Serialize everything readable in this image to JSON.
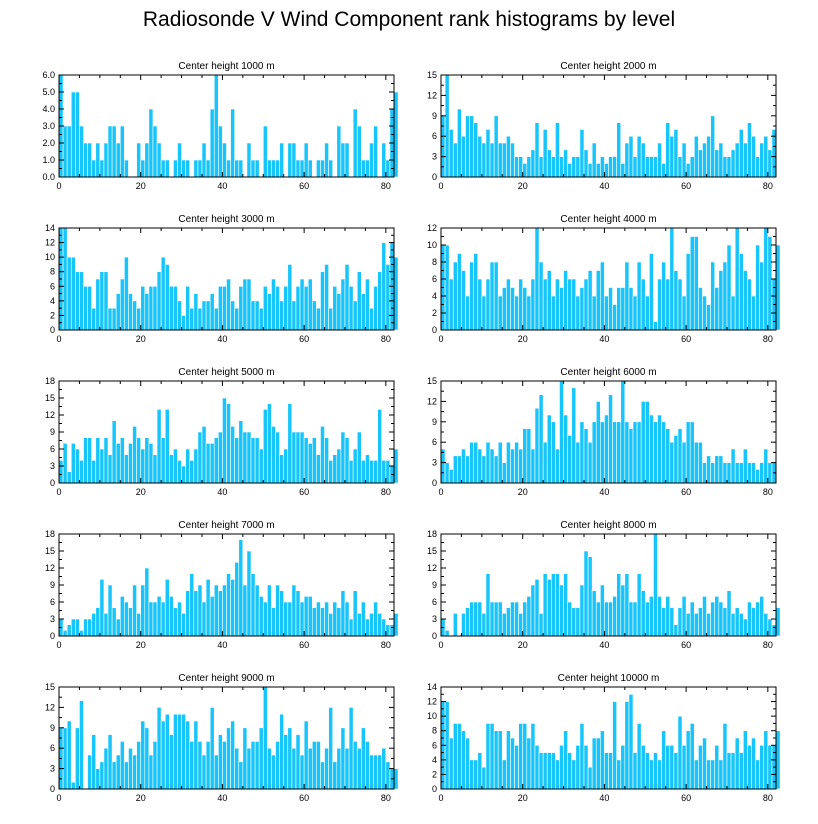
{
  "title": "Radiosonde V Wind Component rank histograms by level",
  "colors": {
    "bar": "#18c5fa",
    "frame": "#000000"
  },
  "chart_data": [
    {
      "type": "bar",
      "title": "Center height 1000 m",
      "ylim": [
        0,
        6
      ],
      "yticks": [
        "0.0",
        "1.0",
        "2.0",
        "3.0",
        "4.0",
        "5.0",
        "6.0"
      ],
      "ytick_values": [
        0,
        1,
        2,
        3,
        4,
        5,
        6
      ],
      "xlim": [
        0,
        82
      ],
      "xticks": [
        "0",
        "20",
        "40",
        "60",
        "80"
      ],
      "xtick_values": [
        0,
        20,
        40,
        60,
        80
      ],
      "values": [
        6,
        3,
        3,
        5,
        5,
        3,
        2,
        2,
        1,
        2,
        1,
        2,
        3,
        3,
        2,
        3,
        1,
        0,
        0,
        2,
        1,
        2,
        4,
        3,
        2,
        1,
        1,
        0,
        1,
        2,
        1,
        1,
        0,
        1,
        1,
        2,
        1,
        4,
        6,
        3,
        2,
        1,
        4,
        1,
        1,
        0,
        2,
        1,
        1,
        0,
        3,
        1,
        1,
        1,
        2,
        0,
        2,
        2,
        1,
        1,
        2,
        1,
        0,
        1,
        1,
        2,
        1,
        0,
        3,
        2,
        2,
        0,
        4,
        3,
        1,
        1,
        2,
        3,
        0,
        2,
        1,
        4,
        5
      ]
    },
    {
      "type": "bar",
      "title": "Center height 2000 m",
      "ylim": [
        0,
        15
      ],
      "yticks": [
        "0",
        "3",
        "6",
        "9",
        "12",
        "15"
      ],
      "ytick_values": [
        0,
        3,
        6,
        9,
        12,
        15
      ],
      "xlim": [
        0,
        82
      ],
      "xticks": [
        "0",
        "20",
        "40",
        "60",
        "80"
      ],
      "xtick_values": [
        0,
        20,
        40,
        60,
        80
      ],
      "values": [
        9,
        15,
        7,
        5,
        10,
        6,
        9,
        9,
        8,
        6,
        5,
        7,
        5,
        9,
        5,
        5,
        6,
        5,
        3,
        3,
        2,
        3,
        4,
        8,
        3,
        7,
        4,
        3,
        8,
        3,
        4,
        2,
        3,
        3,
        7,
        4,
        2,
        5,
        2,
        3,
        2,
        3,
        3,
        8,
        2,
        5,
        6,
        3,
        6,
        5,
        3,
        3,
        3,
        5,
        2,
        8,
        6,
        7,
        3,
        5,
        2,
        3,
        6,
        4,
        5,
        6,
        9,
        4,
        5,
        3,
        3,
        4,
        5,
        7,
        5,
        8,
        6,
        3,
        5,
        6,
        4,
        7
      ]
    },
    {
      "type": "bar",
      "title": "Center height 3000 m",
      "ylim": [
        0,
        14
      ],
      "yticks": [
        "0",
        "2",
        "4",
        "6",
        "8",
        "10",
        "12",
        "14"
      ],
      "ytick_values": [
        0,
        2,
        4,
        6,
        8,
        10,
        12,
        14
      ],
      "xlim": [
        0,
        82
      ],
      "xticks": [
        "0",
        "20",
        "40",
        "60",
        "80"
      ],
      "xtick_values": [
        0,
        20,
        40,
        60,
        80
      ],
      "values": [
        14,
        14,
        10,
        10,
        8,
        8,
        6,
        6,
        3,
        7,
        8,
        8,
        3,
        3,
        5,
        7,
        10,
        5,
        4,
        3,
        6,
        5,
        6,
        6,
        8,
        10,
        9,
        6,
        6,
        4,
        2,
        6,
        3,
        5,
        3,
        4,
        4,
        5,
        3,
        6,
        6,
        7,
        4,
        3,
        6,
        7,
        7,
        4,
        4,
        3,
        6,
        5,
        7,
        6,
        4,
        6,
        9,
        4,
        6,
        7,
        6,
        7,
        4,
        3,
        8,
        9,
        3,
        6,
        5,
        7,
        9,
        6,
        4,
        8,
        5,
        7,
        3,
        6,
        8,
        12,
        9,
        12,
        10
      ]
    },
    {
      "type": "bar",
      "title": "Center height 4000 m",
      "ylim": [
        0,
        12
      ],
      "yticks": [
        "0",
        "2",
        "4",
        "6",
        "8",
        "10",
        "12"
      ],
      "ytick_values": [
        0,
        2,
        4,
        6,
        8,
        10,
        12
      ],
      "xlim": [
        0,
        82
      ],
      "xticks": [
        "0",
        "20",
        "40",
        "60",
        "80"
      ],
      "xtick_values": [
        0,
        20,
        40,
        60,
        80
      ],
      "values": [
        10,
        10,
        6,
        8,
        9,
        7,
        4,
        8,
        9,
        6,
        4,
        6,
        8,
        8,
        4,
        5,
        6,
        5,
        4,
        6,
        5,
        4,
        6,
        12,
        8,
        6,
        7,
        4,
        6,
        5,
        7,
        6,
        6,
        4,
        5,
        6,
        7,
        4,
        7,
        8,
        4,
        5,
        3,
        5,
        5,
        8,
        5,
        4,
        8,
        6,
        4,
        9,
        1,
        6,
        8,
        6,
        12,
        7,
        6,
        4,
        9,
        11,
        11,
        5,
        4,
        3,
        8,
        5,
        7,
        8,
        10,
        4,
        12,
        9,
        7,
        6,
        4,
        10,
        8,
        12,
        11,
        6,
        10
      ]
    },
    {
      "type": "bar",
      "title": "Center height 5000 m",
      "ylim": [
        0,
        18
      ],
      "yticks": [
        "0",
        "3",
        "6",
        "9",
        "12",
        "15",
        "18"
      ],
      "ytick_values": [
        0,
        3,
        6,
        9,
        12,
        15,
        18
      ],
      "xlim": [
        0,
        82
      ],
      "xticks": [
        "0",
        "20",
        "40",
        "60",
        "80"
      ],
      "xtick_values": [
        0,
        20,
        40,
        60,
        80
      ],
      "values": [
        4,
        7,
        2,
        7,
        6,
        4,
        8,
        8,
        4,
        8,
        6,
        8,
        5,
        11,
        7,
        8,
        5,
        7,
        10,
        8,
        6,
        8,
        7,
        5,
        13,
        8,
        13,
        5,
        6,
        4,
        3,
        6,
        4,
        6,
        9,
        10,
        7,
        7,
        8,
        9,
        15,
        14,
        10,
        8,
        11,
        9,
        9,
        8,
        8,
        6,
        13,
        14,
        10,
        9,
        5,
        6,
        14,
        9,
        9,
        9,
        8,
        7,
        8,
        5,
        10,
        8,
        4,
        5,
        6,
        9,
        8,
        4,
        6,
        9,
        4,
        5,
        4,
        4,
        13,
        4,
        4,
        3,
        6
      ]
    },
    {
      "type": "bar",
      "title": "Center height 6000 m",
      "ylim": [
        0,
        15
      ],
      "yticks": [
        "0",
        "3",
        "6",
        "9",
        "12",
        "15"
      ],
      "ytick_values": [
        0,
        3,
        6,
        9,
        12,
        15
      ],
      "xlim": [
        0,
        82
      ],
      "xticks": [
        "0",
        "20",
        "40",
        "60",
        "80"
      ],
      "xtick_values": [
        0,
        20,
        40,
        60,
        80
      ],
      "values": [
        5,
        3,
        2,
        4,
        4,
        5,
        4,
        6,
        6,
        5,
        4,
        6,
        5,
        4,
        6,
        3,
        6,
        5,
        6,
        5,
        8,
        8,
        5,
        11,
        13,
        6,
        10,
        9,
        5,
        15,
        10,
        7,
        14,
        6,
        9,
        8,
        6,
        9,
        12,
        9,
        10,
        13,
        9,
        9,
        15,
        9,
        8,
        9,
        9,
        12,
        12,
        10,
        9,
        10,
        9,
        8,
        6,
        7,
        8,
        6,
        9,
        9,
        6,
        6,
        3,
        4,
        3,
        4,
        4,
        3,
        3,
        5,
        3,
        3,
        5,
        3,
        3,
        2,
        3,
        5,
        3,
        3
      ]
    },
    {
      "type": "bar",
      "title": "Center height 7000 m",
      "ylim": [
        0,
        18
      ],
      "yticks": [
        "0",
        "3",
        "6",
        "9",
        "12",
        "15",
        "18"
      ],
      "ytick_values": [
        0,
        3,
        6,
        9,
        12,
        15,
        18
      ],
      "xlim": [
        0,
        82
      ],
      "xticks": [
        "0",
        "20",
        "40",
        "60",
        "80"
      ],
      "xtick_values": [
        0,
        20,
        40,
        60,
        80
      ],
      "values": [
        3,
        1,
        2,
        3,
        3,
        1,
        3,
        3,
        4,
        5,
        10,
        4,
        9,
        5,
        3,
        7,
        6,
        5,
        9,
        4,
        9,
        12,
        6,
        6,
        7,
        6,
        10,
        7,
        5,
        6,
        4,
        8,
        11,
        8,
        9,
        6,
        10,
        7,
        9,
        8,
        9,
        11,
        10,
        13,
        17,
        9,
        15,
        11,
        9,
        7,
        6,
        9,
        5,
        9,
        8,
        6,
        6,
        9,
        8,
        6,
        7,
        7,
        5,
        6,
        5,
        6,
        4,
        6,
        5,
        8,
        6,
        3,
        8,
        4,
        6,
        3,
        4,
        6,
        4,
        3,
        2,
        2,
        4
      ]
    },
    {
      "type": "bar",
      "title": "Center height 8000 m",
      "ylim": [
        0,
        18
      ],
      "yticks": [
        "0",
        "3",
        "6",
        "9",
        "12",
        "15",
        "18"
      ],
      "ytick_values": [
        0,
        3,
        6,
        9,
        12,
        15,
        18
      ],
      "xlim": [
        0,
        82
      ],
      "xticks": [
        "0",
        "20",
        "40",
        "60",
        "80"
      ],
      "xtick_values": [
        0,
        20,
        40,
        60,
        80
      ],
      "values": [
        3,
        1,
        0,
        4,
        0,
        4,
        5,
        6,
        6,
        6,
        4,
        11,
        6,
        6,
        6,
        4,
        5,
        6,
        6,
        4,
        6,
        7,
        9,
        10,
        4,
        11,
        10,
        11,
        11,
        9,
        11,
        6,
        5,
        5,
        9,
        15,
        14,
        8,
        6,
        9,
        6,
        6,
        7,
        11,
        9,
        11,
        6,
        6,
        11,
        8,
        6,
        7,
        18,
        7,
        5,
        7,
        5,
        2,
        5,
        7,
        4,
        6,
        4,
        5,
        7,
        4,
        6,
        7,
        6,
        5,
        8,
        4,
        5,
        4,
        3,
        6,
        5,
        6,
        7,
        4,
        3,
        2,
        5
      ]
    },
    {
      "type": "bar",
      "title": "Center height 9000 m",
      "ylim": [
        0,
        15
      ],
      "yticks": [
        "0",
        "3",
        "6",
        "9",
        "12",
        "15"
      ],
      "ytick_values": [
        0,
        3,
        6,
        9,
        12,
        15
      ],
      "xlim": [
        0,
        82
      ],
      "xticks": [
        "0",
        "20",
        "40",
        "60",
        "80"
      ],
      "xtick_values": [
        0,
        20,
        40,
        60,
        80
      ],
      "values": [
        9,
        9,
        10,
        1,
        9,
        13,
        0,
        5,
        8,
        3,
        4,
        6,
        8,
        4,
        5,
        7,
        4,
        6,
        5,
        7,
        10,
        9,
        5,
        7,
        12,
        10,
        11,
        8,
        11,
        11,
        11,
        10,
        7,
        10,
        7,
        5,
        7,
        12,
        5,
        8,
        7,
        9,
        10,
        6,
        4,
        9,
        6,
        7,
        7,
        9,
        15,
        6,
        5,
        7,
        11,
        8,
        9,
        6,
        8,
        5,
        10,
        6,
        7,
        7,
        4,
        6,
        12,
        4,
        6,
        9,
        6,
        12,
        7,
        6,
        9,
        7,
        5,
        5,
        5,
        6,
        4,
        3,
        3
      ]
    },
    {
      "type": "bar",
      "title": "Center height 10000 m",
      "ylim": [
        0,
        14
      ],
      "yticks": [
        "0",
        "2",
        "4",
        "6",
        "8",
        "10",
        "12",
        "14"
      ],
      "ytick_values": [
        0,
        2,
        4,
        6,
        8,
        10,
        12,
        14
      ],
      "xlim": [
        0,
        82
      ],
      "xticks": [
        "0",
        "20",
        "40",
        "60",
        "80"
      ],
      "xtick_values": [
        0,
        20,
        40,
        60,
        80
      ],
      "values": [
        12,
        12,
        7,
        9,
        9,
        8,
        7,
        4,
        4,
        5,
        3,
        9,
        9,
        8,
        8,
        4,
        8,
        7,
        6,
        9,
        9,
        7,
        9,
        6,
        5,
        5,
        5,
        5,
        4,
        6,
        8,
        5,
        4,
        6,
        9,
        6,
        3,
        7,
        7,
        8,
        5,
        5,
        12,
        4,
        6,
        12,
        13,
        5,
        9,
        6,
        5,
        4,
        5,
        4,
        8,
        6,
        6,
        5,
        10,
        6,
        8,
        9,
        4,
        6,
        7,
        4,
        4,
        6,
        4,
        9,
        5,
        5,
        7,
        5,
        8,
        6,
        7,
        4,
        6,
        8,
        6,
        6,
        8
      ]
    }
  ]
}
